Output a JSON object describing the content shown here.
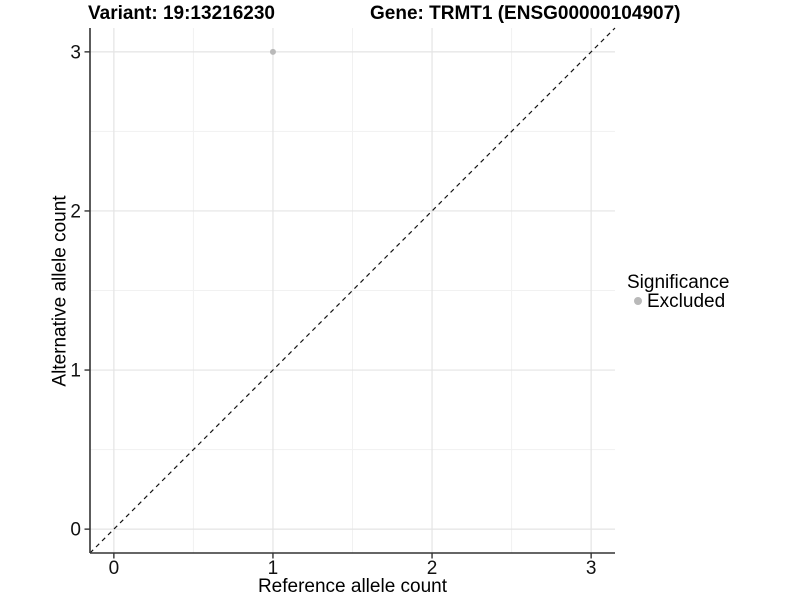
{
  "chart_data": {
    "type": "scatter",
    "titles": {
      "left": "Variant: 19:13216230",
      "right": "Gene: TRMT1 (ENSG00000104907)"
    },
    "xlabel": "Reference allele count",
    "ylabel": "Alternative allele count",
    "xlim": [
      -0.15,
      3.15
    ],
    "ylim": [
      -0.15,
      3.15
    ],
    "x_ticks": [
      0,
      1,
      2,
      3
    ],
    "y_ticks": [
      0,
      1,
      2,
      3
    ],
    "x_minor": [
      0.5,
      1.5,
      2.5
    ],
    "y_minor": [
      0.5,
      1.5,
      2.5
    ],
    "grid": true,
    "points": [
      {
        "x": 1,
        "y": 3,
        "significance": "Excluded"
      }
    ],
    "reference_line": {
      "kind": "identity",
      "style": "dashed"
    },
    "legend": {
      "title": "Significance",
      "position": "right",
      "items": [
        {
          "label": "Excluded",
          "color": "#b9b9b9"
        }
      ]
    },
    "colors": {
      "point": "#b9b9b9",
      "grid_major": "#e4e4e4",
      "grid_minor": "#f1f1f1",
      "axis": "#333333",
      "tick_text": "#111111",
      "reference_line": "#141414",
      "background": "#ffffff"
    }
  }
}
